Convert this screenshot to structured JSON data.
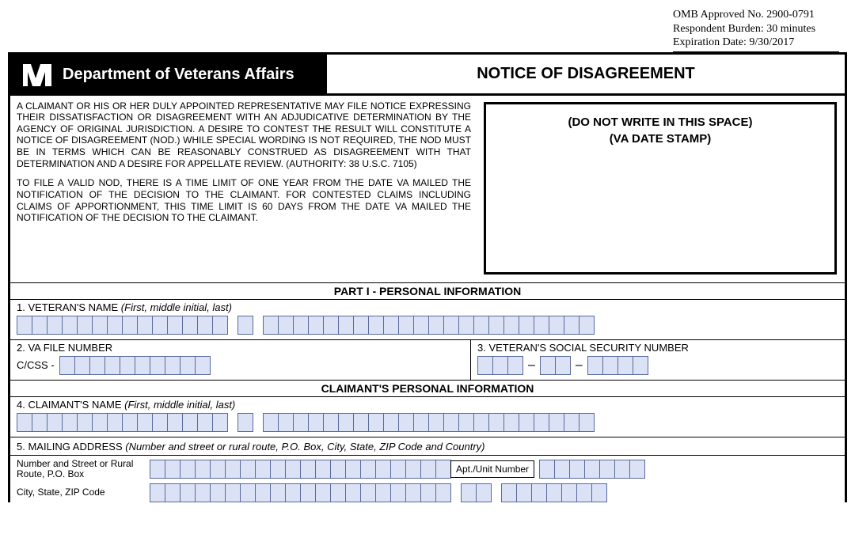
{
  "omb": {
    "line1": "OMB Approved No. 2900-0791",
    "line2": "Respondent Burden: 30 minutes",
    "line3": "Expiration Date: 9/30/2017"
  },
  "header": {
    "department": "Department of Veterans Affairs",
    "form_title": "NOTICE OF DISAGREEMENT"
  },
  "intro": {
    "p1": "A CLAIMANT OR HIS OR HER DULY APPOINTED REPRESENTATIVE MAY FILE NOTICE EXPRESSING THEIR DISSATISFACTION OR DISAGREEMENT WITH AN ADJUDICATIVE DETERMINATION BY THE AGENCY OF ORIGINAL JURISDICTION.  A DESIRE TO CONTEST THE RESULT WILL CONSTITUTE A NOTICE OF DISAGREEMENT (NOD.) WHILE SPECIAL WORDING IS NOT REQUIRED, THE NOD MUST BE IN TERMS WHICH CAN BE REASONABLY CONSTRUED AS DISAGREEMENT WITH THAT DETERMINATION AND A DESIRE FOR APPELLATE REVIEW.  (AUTHORITY:  38 U.S.C. 7105)",
    "p2": "TO FILE A VALID NOD, THERE IS A TIME LIMIT OF ONE YEAR FROM THE DATE VA MAILED THE NOTIFICATION OF THE DECISION TO THE CLAIMANT.  FOR CONTESTED CLAIMS INCLUDING CLAIMS OF APPORTIONMENT, THIS TIME LIMIT IS 60 DAYS FROM THE DATE VA MAILED THE NOTIFICATION OF THE DECISION TO THE CLAIMANT."
  },
  "stamp": {
    "line1": "(DO NOT WRITE IN THIS SPACE)",
    "line2": "(VA DATE STAMP)"
  },
  "sections": {
    "part1": "PART I - PERSONAL INFORMATION",
    "claimant_info": "CLAIMANT'S PERSONAL INFORMATION"
  },
  "fields": {
    "f1": {
      "num": "1. VETERAN'S NAME",
      "hint": " (First, middle initial, last)",
      "first_len": 14,
      "mi_len": 1,
      "last_len": 22
    },
    "f2": {
      "num": "2. VA FILE NUMBER",
      "prefix": "C/CSS -",
      "len": 10
    },
    "f3": {
      "num": "3. VETERAN'S SOCIAL SECURITY NUMBER",
      "g1": 3,
      "g2": 2,
      "g3": 4
    },
    "f4": {
      "num": "4. CLAIMANT'S NAME",
      "hint": " (First, middle initial, last)",
      "first_len": 14,
      "mi_len": 1,
      "last_len": 22
    },
    "f5": {
      "num": "5. MAILING ADDRESS",
      "hint": " (Number and street or rural route, P.O. Box, City, State, ZIP Code and Country)",
      "row1_label": "Number and Street or Rural Route, P.O. Box",
      "row1_len": 20,
      "apt_label": "Apt./Unit Number",
      "apt_len": 7,
      "row2_label": "City, State, ZIP Code",
      "row2_city_len": 20,
      "row2_state_len": 2,
      "row2_zip_len": 7
    }
  },
  "style": {
    "box_bg": "#dbe2f5",
    "box_border": "#5a6a9a"
  }
}
